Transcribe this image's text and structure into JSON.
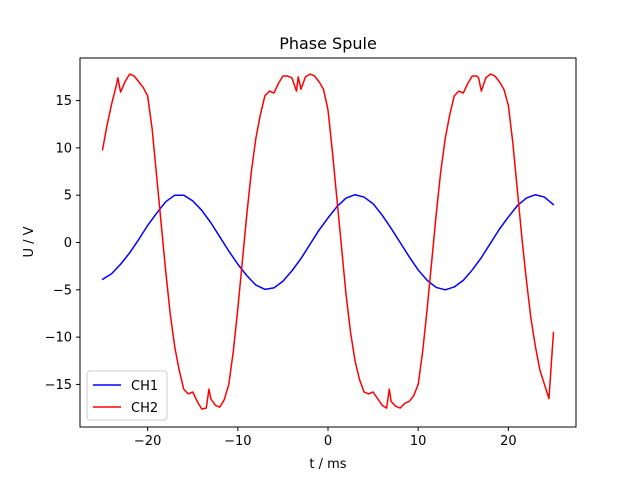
{
  "chart_data": {
    "type": "line",
    "title": "Phase Spule",
    "xlabel": "t / ms",
    "ylabel": "U / V",
    "xlim": [
      -27.5,
      27.5
    ],
    "ylim": [
      -19.5,
      19.5
    ],
    "xticks": [
      -20,
      -10,
      0,
      10,
      20
    ],
    "xtick_labels": [
      "−20",
      "−10",
      "0",
      "10",
      "20"
    ],
    "yticks": [
      -15,
      -10,
      -5,
      0,
      5,
      10,
      15
    ],
    "ytick_labels": [
      "−15",
      "−10",
      "−5",
      "0",
      "5",
      "10",
      "15"
    ],
    "grid": false,
    "legend": {
      "position": "lower-left",
      "entries": [
        "CH1",
        "CH2"
      ]
    },
    "series": [
      {
        "name": "CH1",
        "color": "#0000ff",
        "x": [
          -25,
          -24,
          -23,
          -22,
          -21,
          -20,
          -19,
          -18,
          -17,
          -16,
          -15,
          -14,
          -13,
          -12,
          -11,
          -10,
          -9,
          -8,
          -7,
          -6,
          -5,
          -4,
          -3,
          -2,
          -1,
          0,
          1,
          2,
          3,
          4,
          5,
          6,
          7,
          8,
          9,
          10,
          11,
          12,
          13,
          14,
          15,
          16,
          17,
          18,
          19,
          20,
          21,
          22,
          23,
          24,
          25
        ],
        "y": [
          -3.9,
          -3.3,
          -2.3,
          -1.1,
          0.3,
          1.8,
          3.1,
          4.3,
          5.0,
          5.0,
          4.4,
          3.4,
          2.1,
          0.6,
          -0.9,
          -2.3,
          -3.5,
          -4.5,
          -4.95,
          -4.8,
          -4.1,
          -3.0,
          -1.7,
          -0.2,
          1.3,
          2.6,
          3.8,
          4.7,
          5.05,
          4.8,
          4.1,
          2.9,
          1.5,
          0.0,
          -1.5,
          -2.9,
          -4.0,
          -4.75,
          -5.0,
          -4.7,
          -4.0,
          -2.9,
          -1.6,
          -0.1,
          1.4,
          2.7,
          3.9,
          4.7,
          5.05,
          4.8,
          4.0
        ]
      },
      {
        "name": "CH2",
        "color": "#ff0000",
        "x": [
          -25,
          -24.5,
          -24,
          -23.5,
          -23.3,
          -23,
          -22.5,
          -22,
          -21.5,
          -21,
          -20.5,
          -20,
          -19.5,
          -19,
          -18.5,
          -18,
          -17.5,
          -17,
          -16.5,
          -16,
          -15.5,
          -15,
          -14.5,
          -14,
          -13.5,
          -13.2,
          -13,
          -12.5,
          -12,
          -11.5,
          -11,
          -10.5,
          -10,
          -9.5,
          -9,
          -8.5,
          -8,
          -7.5,
          -7,
          -6.5,
          -6,
          -5.5,
          -5,
          -4.5,
          -4,
          -3.5,
          -3.3,
          -3,
          -2.5,
          -2,
          -1.5,
          -1,
          -0.5,
          0,
          0.5,
          1,
          1.5,
          2,
          2.5,
          3,
          3.5,
          4,
          4.5,
          5,
          5.5,
          6,
          6.5,
          6.8,
          7,
          7.5,
          8,
          8.5,
          9,
          9.5,
          10,
          10.5,
          11,
          11.5,
          12,
          12.5,
          13,
          13.5,
          14,
          14.5,
          15,
          15.5,
          16,
          16.5,
          16.7,
          17,
          17.5,
          18,
          18.5,
          19,
          19.5,
          20,
          20.5,
          21,
          21.5,
          22,
          22.5,
          23,
          23.5,
          24,
          24.5,
          25
        ],
        "y": [
          9.8,
          12.4,
          14.6,
          16.5,
          17.4,
          15.9,
          17.0,
          17.8,
          17.6,
          17.0,
          16.4,
          15.5,
          12.0,
          7.0,
          2.0,
          -3.0,
          -7.5,
          -11.0,
          -13.5,
          -15.5,
          -16.0,
          -15.8,
          -16.8,
          -17.6,
          -17.5,
          -15.5,
          -16.5,
          -17.2,
          -17.4,
          -16.6,
          -15.0,
          -11.5,
          -7.0,
          -2.0,
          3.0,
          7.5,
          11.0,
          13.5,
          15.5,
          16.0,
          15.8,
          16.8,
          17.6,
          17.6,
          17.4,
          16.0,
          17.5,
          16.2,
          17.5,
          17.8,
          17.6,
          17.0,
          16.2,
          14.0,
          9.5,
          4.5,
          -0.5,
          -5.5,
          -9.5,
          -12.5,
          -14.5,
          -15.8,
          -16.0,
          -15.8,
          -16.5,
          -17.2,
          -17.5,
          -15.5,
          -16.8,
          -17.3,
          -17.5,
          -17.0,
          -16.8,
          -16.2,
          -15.0,
          -11.5,
          -7.0,
          -2.0,
          3.0,
          7.5,
          11.0,
          13.5,
          15.5,
          16.0,
          15.8,
          16.8,
          17.6,
          17.6,
          17.4,
          16.0,
          17.4,
          17.8,
          17.6,
          17.0,
          16.2,
          14.5,
          10.5,
          5.5,
          0.5,
          -4.0,
          -8.0,
          -11.0,
          -13.5,
          -15.0,
          -16.5,
          -9.5
        ]
      }
    ]
  }
}
